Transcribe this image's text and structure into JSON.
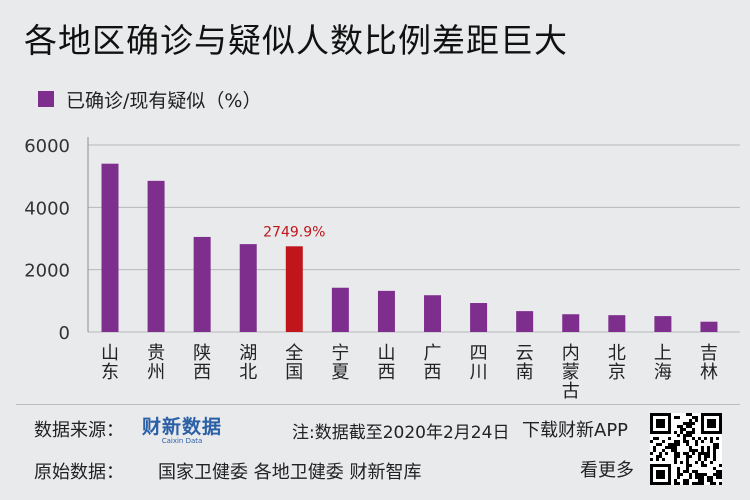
{
  "title": "各地区确诊与疑似人数比例差距巨大",
  "legend": {
    "label": "已确诊/现有疑似（%）",
    "color": "#7e2f8e"
  },
  "chart_data": {
    "type": "bar",
    "title": "各地区确诊与疑似人数比例差距巨大",
    "categories": [
      "山东",
      "贵州",
      "陕西",
      "湖北",
      "全国",
      "宁夏",
      "山西",
      "广西",
      "四川",
      "云南",
      "内蒙古",
      "北京",
      "上海",
      "吉林"
    ],
    "series": [
      {
        "name": "已确诊/现有疑似（%）",
        "values": [
          5400,
          4850,
          3050,
          2820,
          2749.9,
          1420,
          1320,
          1180,
          930,
          670,
          570,
          540,
          510,
          330
        ]
      }
    ],
    "highlight": {
      "category": "全国",
      "label": "2749.9%",
      "color": "#c0161b"
    },
    "bar_color": "#7e2f8e",
    "ylim": [
      0,
      6000
    ],
    "yticks": [
      "0",
      "2000",
      "4000",
      "6000"
    ],
    "grid": true,
    "legend_position": "top-left"
  },
  "footer": {
    "source_label": "数据来源：",
    "logo_cn": "财新数据",
    "logo_en": "Caixin Data",
    "note": "注:数据截至2020年2月24日",
    "download": "下载财新APP",
    "raw_label": "原始数据：",
    "raw_value": "国家卫健委  各地卫健委  财新智库",
    "more": "看更多"
  }
}
